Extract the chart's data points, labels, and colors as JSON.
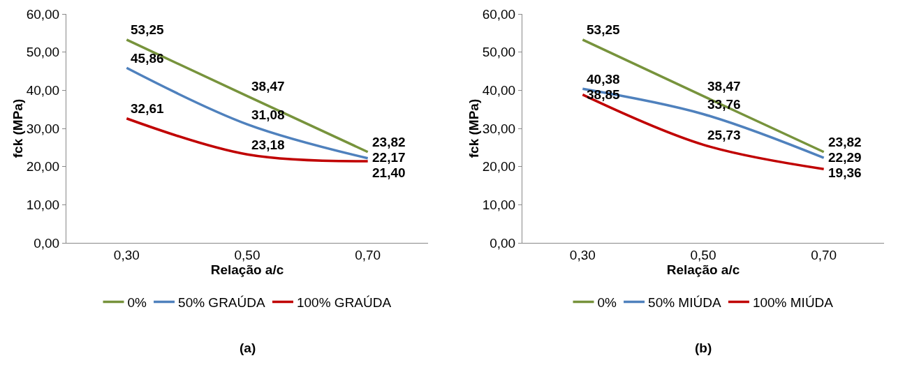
{
  "chart_data": [
    {
      "type": "line",
      "xlabel": "Relação a/c",
      "ylabel": "fck (MPa)",
      "categories": [
        "0,30",
        "0,50",
        "0,70"
      ],
      "ylim": [
        0,
        60
      ],
      "yticks": [
        {
          "value": 0,
          "label": "0,00"
        },
        {
          "value": 10,
          "label": "10,00"
        },
        {
          "value": 20,
          "label": "20,00"
        },
        {
          "value": 30,
          "label": "30,00"
        },
        {
          "value": 40,
          "label": "40,00"
        },
        {
          "value": 50,
          "label": "50,00"
        },
        {
          "value": 60,
          "label": "60,00"
        }
      ],
      "grid": false,
      "legend": "bottom",
      "marker": "none",
      "line_style": "solid",
      "annotations": [
        "(a)"
      ],
      "series": [
        {
          "name": "0%",
          "color": "#77933c",
          "values": [
            53.25,
            38.47,
            23.82
          ],
          "value_labels": [
            "53,25",
            "38,47",
            "23,82"
          ]
        },
        {
          "name": "50% GRAÚDA",
          "color": "#4f81bd",
          "values": [
            45.86,
            31.08,
            22.17
          ],
          "value_labels": [
            "45,86",
            "31,08",
            "22,17"
          ]
        },
        {
          "name": "100% GRAÚDA",
          "color": "#c00000",
          "values": [
            32.61,
            23.18,
            21.4
          ],
          "value_labels": [
            "32,61",
            "23,18",
            "21,40"
          ]
        }
      ]
    },
    {
      "type": "line",
      "xlabel": "Relação a/c",
      "ylabel": "fck (MPa)",
      "categories": [
        "0,30",
        "0,50",
        "0,70"
      ],
      "ylim": [
        0,
        60
      ],
      "yticks": [
        {
          "value": 0,
          "label": "0,00"
        },
        {
          "value": 10,
          "label": "10,00"
        },
        {
          "value": 20,
          "label": "20,00"
        },
        {
          "value": 30,
          "label": "30,00"
        },
        {
          "value": 40,
          "label": "40,00"
        },
        {
          "value": 50,
          "label": "50,00"
        },
        {
          "value": 60,
          "label": "60,00"
        }
      ],
      "grid": false,
      "legend": "bottom",
      "marker": "none",
      "line_style": "solid",
      "annotations": [
        "(b)"
      ],
      "series": [
        {
          "name": "0%",
          "color": "#77933c",
          "values": [
            53.25,
            38.47,
            23.82
          ],
          "value_labels": [
            "53,25",
            "38,47",
            "23,82"
          ]
        },
        {
          "name": "50% MIÚDA",
          "color": "#4f81bd",
          "values": [
            40.38,
            33.76,
            22.29
          ],
          "value_labels": [
            "40,38",
            "33,76",
            "22,29"
          ]
        },
        {
          "name": "100% MIÚDA",
          "color": "#c00000",
          "values": [
            38.85,
            25.73,
            19.36
          ],
          "value_labels": [
            "38,85",
            "25,73",
            "19,36"
          ]
        }
      ]
    }
  ]
}
